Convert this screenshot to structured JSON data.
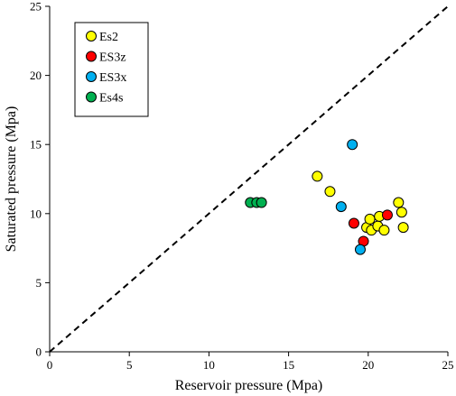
{
  "chart_data": {
    "type": "scatter",
    "title": "",
    "xlabel": "Reservoir pressure (Mpa)",
    "ylabel": "Saturated pressure (Mpa)",
    "xlim": [
      0,
      25
    ],
    "ylim": [
      0,
      25
    ],
    "xticks": [
      0,
      5,
      10,
      15,
      20,
      25
    ],
    "yticks": [
      0,
      5,
      10,
      15,
      20,
      25
    ],
    "grid": false,
    "legend_position": "top-left",
    "reference_line": {
      "style": "dashed",
      "x": [
        0,
        25
      ],
      "y": [
        0,
        25
      ]
    },
    "series": [
      {
        "name": "Es2",
        "color": "#ffff00",
        "points": [
          [
            16.8,
            12.7
          ],
          [
            17.6,
            11.6
          ],
          [
            19.9,
            9.0
          ],
          [
            20.1,
            9.6
          ],
          [
            20.2,
            8.8
          ],
          [
            20.6,
            9.1
          ],
          [
            20.7,
            9.8
          ],
          [
            21.0,
            8.8
          ],
          [
            21.9,
            10.8
          ],
          [
            22.1,
            10.1
          ],
          [
            22.2,
            9.0
          ]
        ]
      },
      {
        "name": "ES3z",
        "color": "#ff0000",
        "points": [
          [
            19.1,
            9.3
          ],
          [
            19.7,
            8.0
          ],
          [
            21.2,
            9.9
          ]
        ]
      },
      {
        "name": "ES3x",
        "color": "#00b0f0",
        "points": [
          [
            19.0,
            15.0
          ],
          [
            18.3,
            10.5
          ],
          [
            19.5,
            7.4
          ]
        ]
      },
      {
        "name": "Es4s",
        "color": "#00b050",
        "points": [
          [
            12.6,
            10.8
          ],
          [
            13.0,
            10.8
          ],
          [
            13.3,
            10.8
          ]
        ]
      }
    ]
  }
}
